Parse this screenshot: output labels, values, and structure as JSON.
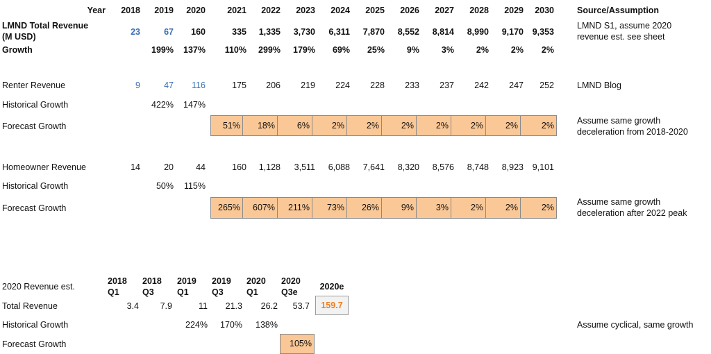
{
  "header": {
    "year_label": "Year",
    "years": [
      "2018",
      "2019",
      "2020",
      "2021",
      "2022",
      "2023",
      "2024",
      "2025",
      "2026",
      "2027",
      "2028",
      "2029",
      "2030"
    ],
    "source_label": "Source/Assumption"
  },
  "total": {
    "label_line1": "LMND Total Revenue",
    "label_line2": "(M USD)",
    "values": [
      "23",
      "67",
      "160",
      "335",
      "1,335",
      "3,730",
      "6,311",
      "7,870",
      "8,552",
      "8,814",
      "8,990",
      "9,170",
      "9,353"
    ],
    "source_line1": "LMND S1, assume 2020",
    "source_line2": "revenue est. see sheet",
    "growth_label": "Growth",
    "growth": [
      "199%",
      "137%",
      "110%",
      "299%",
      "179%",
      "69%",
      "25%",
      "9%",
      "3%",
      "2%",
      "2%",
      "2%"
    ]
  },
  "renter": {
    "label": "Renter Revenue",
    "values": [
      "9",
      "47",
      "116",
      "175",
      "206",
      "219",
      "224",
      "228",
      "233",
      "237",
      "242",
      "247",
      "252"
    ],
    "source": "LMND Blog",
    "hist_label": "Historical Growth",
    "hist": [
      "422%",
      "147%"
    ],
    "forecast_label": "Forecast Growth",
    "forecast": [
      "51%",
      "18%",
      "6%",
      "2%",
      "2%",
      "2%",
      "2%",
      "2%",
      "2%",
      "2%"
    ],
    "note_line1": "Assume same growth",
    "note_line2": "deceleration from 2018-2020"
  },
  "homeowner": {
    "label": "Homeowner Revenue",
    "values": [
      "14",
      "20",
      "44",
      "160",
      "1,128",
      "3,511",
      "6,088",
      "7,641",
      "8,320",
      "8,576",
      "8,748",
      "8,923",
      "9,101"
    ],
    "hist_label": "Historical Growth",
    "hist": [
      "50%",
      "115%"
    ],
    "forecast_label": "Forecast Growth",
    "forecast": [
      "265%",
      "607%",
      "211%",
      "73%",
      "26%",
      "9%",
      "3%",
      "2%",
      "2%",
      "2%"
    ],
    "note_line1": "Assume same growth",
    "note_line2": "deceleration after 2022 peak"
  },
  "estimate": {
    "label": "2020 Revenue est.",
    "quarters": [
      {
        "year": "2018",
        "q": "Q1"
      },
      {
        "year": "2018",
        "q": "Q3"
      },
      {
        "year": "2019",
        "q": "Q1"
      },
      {
        "year": "2019",
        "q": "Q3"
      },
      {
        "year": "2020",
        "q": "Q1"
      },
      {
        "year": "2020",
        "q": "Q3e"
      }
    ],
    "est_header": "2020e",
    "total_label": "Total Revenue",
    "total_values": [
      "3.4",
      "7.9",
      "11",
      "21.3",
      "26.2",
      "53.7"
    ],
    "total_est": "159.7",
    "hist_label": "Historical Growth",
    "hist": [
      "224%",
      "170%",
      "138%"
    ],
    "hist_note": "Assume cyclical, same growth",
    "forecast_label": "Forecast Growth",
    "forecast": "105%"
  }
}
